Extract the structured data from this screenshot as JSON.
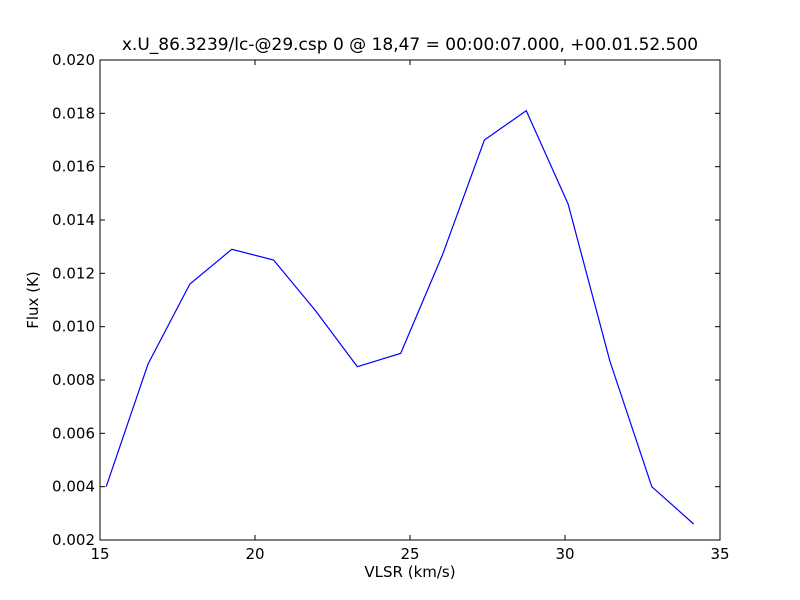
{
  "chart_data": {
    "type": "line",
    "title": "x.U_86.3239/lc-@29.csp 0 @ 18,47 = 00:00:07.000, +00.01.52.500",
    "xlabel": "VLSR (km/s)",
    "ylabel": "Flux (K)",
    "xlim": [
      15,
      35
    ],
    "ylim": [
      0.002,
      0.02
    ],
    "xticks": [
      15,
      20,
      25,
      30,
      35
    ],
    "xtick_labels": [
      "15",
      "20",
      "25",
      "30",
      "35"
    ],
    "yticks": [
      0.002,
      0.004,
      0.006,
      0.008,
      0.01,
      0.012,
      0.014,
      0.016,
      0.018,
      0.02
    ],
    "ytick_labels": [
      "0.002",
      "0.004",
      "0.006",
      "0.008",
      "0.010",
      "0.012",
      "0.014",
      "0.016",
      "0.018",
      "0.020"
    ],
    "grid": false,
    "series": [
      {
        "color": "#0000ff",
        "x": [
          15.2,
          16.55,
          17.9,
          19.25,
          20.6,
          21.95,
          23.3,
          24.7,
          26.05,
          27.4,
          28.75,
          30.1,
          31.45,
          32.8,
          34.15
        ],
        "y": [
          0.004,
          0.0086,
          0.0116,
          0.0129,
          0.0125,
          0.0106,
          0.0085,
          0.009,
          0.0127,
          0.017,
          0.0181,
          0.0146,
          0.0087,
          0.004,
          0.0026
        ]
      }
    ]
  }
}
